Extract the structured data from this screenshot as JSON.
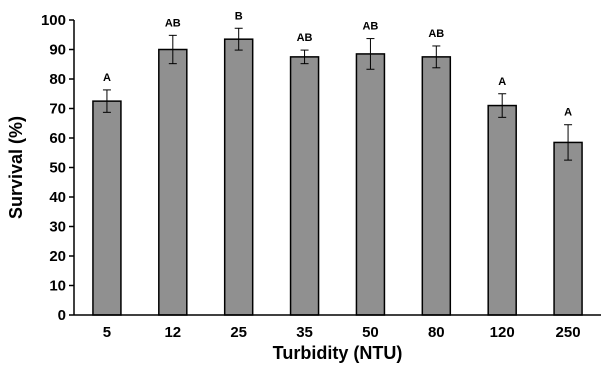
{
  "chart_data": {
    "type": "bar",
    "xlabel": "Turbidity (NTU)",
    "ylabel": "Survival (%)",
    "ylim": [
      0,
      100
    ],
    "yticks": [
      0,
      10,
      20,
      30,
      40,
      50,
      60,
      70,
      80,
      90,
      100
    ],
    "categories": [
      "5",
      "12",
      "25",
      "35",
      "50",
      "80",
      "120",
      "250"
    ],
    "values": [
      72.5,
      90,
      93.5,
      87.5,
      88.5,
      87.5,
      71,
      58.5
    ],
    "errors": [
      3.8,
      4.8,
      3.7,
      2.3,
      5.2,
      3.7,
      4,
      6
    ],
    "significance": [
      "A",
      "AB",
      "B",
      "AB",
      "AB",
      "AB",
      "A",
      "A"
    ],
    "bar_color": "#909090",
    "grid": false
  }
}
